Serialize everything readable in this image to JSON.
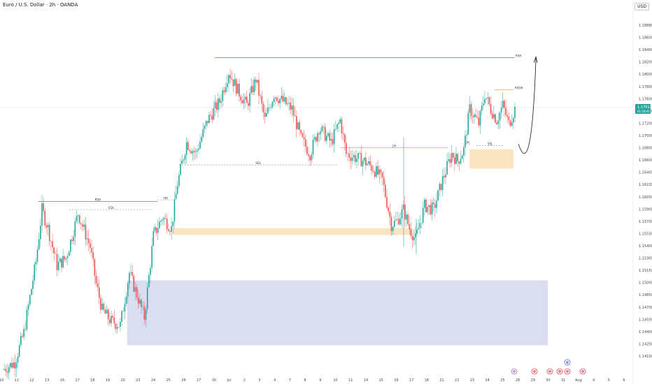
{
  "header": {
    "symbol_title": "Euro / U.S. Dollar · 2h · OANDA",
    "currency": "USD"
  },
  "colors": {
    "up": "#26a69a",
    "down": "#ef5350",
    "zone_orange": "#fbe3bf",
    "zone_blue": "#d8dcef",
    "line_blue": "#2962ff",
    "line_orange": "#f0a830"
  },
  "chart_data": {
    "type": "candlestick",
    "title": "",
    "y_ticks": [
      "1.18880",
      "1.18600",
      "1.18400",
      "1.18200",
      "1.18000",
      "1.17800",
      "1.17600",
      "1.17400",
      "1.17200",
      "1.17000",
      "1.16800",
      "1.16600",
      "1.16400",
      "1.16220",
      "1.16050",
      "1.15900",
      "1.15700",
      "1.15550",
      "1.15400",
      "1.15300",
      "1.15150",
      "1.15000",
      "1.14850",
      "1.14700",
      "1.14550",
      "1.14400",
      "1.14250",
      "1.14100"
    ],
    "ylim": [
      1.1405,
      1.1895
    ],
    "x_ticks": [
      "10",
      "11",
      "12",
      "13",
      "16",
      "17",
      "18",
      "19",
      "20",
      "23",
      "24",
      "25",
      "26",
      "27",
      "30",
      "Jul",
      "2",
      "3",
      "4",
      "7",
      "8",
      "9",
      "10",
      "11",
      "14",
      "15",
      "16",
      "17",
      "18",
      "21",
      "22",
      "23",
      "24",
      "25",
      "28",
      "29",
      "30",
      "31",
      "Aug",
      "4",
      "5",
      "6"
    ],
    "current_price": {
      "value": "1.17612",
      "sub": "01:18:41",
      "level": 1.1762
    },
    "levels": [
      {
        "label": "RSH",
        "price": 1.1829,
        "x_from": "30",
        "x_to": "28",
        "color": "blue"
      },
      {
        "label": "RSH",
        "price": 1.1636,
        "x_from": "12",
        "x_to": "24",
        "color": "blue"
      },
      {
        "label": "EQL",
        "price": 1.1625,
        "x_from": "16",
        "x_to": "23",
        "color": "gray"
      },
      {
        "label": "SSL",
        "price": 1.1685,
        "x_from": "25",
        "x_to": "11",
        "color": "gray"
      },
      {
        "label": "HH",
        "price": 1.1638,
        "x_from": "24",
        "x_to": "25",
        "color": "gray"
      },
      {
        "label": "LH",
        "price": 1.1708,
        "x_from": "10",
        "x_to": "21",
        "color": "orange"
      },
      {
        "label": "HH",
        "price": 1.1713,
        "x_from": "21",
        "x_to": "22",
        "color": "gray"
      },
      {
        "label": "SSL",
        "price": 1.1711,
        "x_from": "23",
        "x_to": "25",
        "color": "gray"
      },
      {
        "label": "RSOH",
        "price": 1.1786,
        "x_from": "24",
        "x_to": "28",
        "color": "orange"
      }
    ],
    "zones": [
      {
        "name": "demand-zone-upper",
        "price_top": 1.1706,
        "price_bottom": 1.168,
        "x_from": "22",
        "x_to": "28",
        "color": "orange"
      },
      {
        "name": "demand-zone-mid",
        "price_top": 1.16,
        "price_bottom": 1.1591,
        "x_from": "25",
        "x_to": "17",
        "color": "orange"
      },
      {
        "name": "demand-zone-lower",
        "price_top": 1.153,
        "price_bottom": 1.1443,
        "x_from": "18",
        "x_to": "31",
        "color": "blue"
      }
    ],
    "projection": {
      "description_points": [
        [
          1.1706,
          "28"
        ],
        [
          1.169,
          "28"
        ],
        [
          1.183,
          "28"
        ]
      ]
    },
    "candle_anchors": [
      {
        "t": 0,
        "p": 1.141
      },
      {
        "t": 8,
        "p": 1.142
      },
      {
        "t": 14,
        "p": 1.146
      },
      {
        "t": 22,
        "p": 1.1555
      },
      {
        "t": 26,
        "p": 1.1625
      },
      {
        "t": 30,
        "p": 1.16
      },
      {
        "t": 36,
        "p": 1.155
      },
      {
        "t": 42,
        "p": 1.156
      },
      {
        "t": 50,
        "p": 1.162
      },
      {
        "t": 58,
        "p": 1.1575
      },
      {
        "t": 62,
        "p": 1.1525
      },
      {
        "t": 66,
        "p": 1.149
      },
      {
        "t": 72,
        "p": 1.1475
      },
      {
        "t": 78,
        "p": 1.147
      },
      {
        "t": 84,
        "p": 1.154
      },
      {
        "t": 90,
        "p": 1.1505
      },
      {
        "t": 94,
        "p": 1.148
      },
      {
        "t": 100,
        "p": 1.159
      },
      {
        "t": 106,
        "p": 1.1615
      },
      {
        "t": 112,
        "p": 1.16
      },
      {
        "t": 116,
        "p": 1.166
      },
      {
        "t": 122,
        "p": 1.1715
      },
      {
        "t": 128,
        "p": 1.17
      },
      {
        "t": 136,
        "p": 1.1745
      },
      {
        "t": 144,
        "p": 1.177
      },
      {
        "t": 150,
        "p": 1.181
      },
      {
        "t": 156,
        "p": 1.1785
      },
      {
        "t": 162,
        "p": 1.1765
      },
      {
        "t": 168,
        "p": 1.18
      },
      {
        "t": 174,
        "p": 1.1745
      },
      {
        "t": 180,
        "p": 1.178
      },
      {
        "t": 186,
        "p": 1.177
      },
      {
        "t": 192,
        "p": 1.176
      },
      {
        "t": 198,
        "p": 1.172
      },
      {
        "t": 204,
        "p": 1.17
      },
      {
        "t": 210,
        "p": 1.1735
      },
      {
        "t": 218,
        "p": 1.1715
      },
      {
        "t": 224,
        "p": 1.1745
      },
      {
        "t": 228,
        "p": 1.17
      },
      {
        "t": 234,
        "p": 1.1695
      },
      {
        "t": 240,
        "p": 1.169
      },
      {
        "t": 246,
        "p": 1.168
      },
      {
        "t": 252,
        "p": 1.1665
      },
      {
        "t": 258,
        "p": 1.1605
      },
      {
        "t": 262,
        "p": 1.161
      },
      {
        "t": 266,
        "p": 1.1625
      },
      {
        "t": 270,
        "p": 1.16
      },
      {
        "t": 274,
        "p": 1.1585
      },
      {
        "t": 280,
        "p": 1.163
      },
      {
        "t": 286,
        "p": 1.1625
      },
      {
        "t": 292,
        "p": 1.1665
      },
      {
        "t": 298,
        "p": 1.17
      },
      {
        "t": 302,
        "p": 1.169
      },
      {
        "t": 306,
        "p": 1.1705
      },
      {
        "t": 310,
        "p": 1.176
      },
      {
        "t": 316,
        "p": 1.174
      },
      {
        "t": 320,
        "p": 1.178
      },
      {
        "t": 324,
        "p": 1.176
      },
      {
        "t": 328,
        "p": 1.1745
      },
      {
        "t": 332,
        "p": 1.1765
      },
      {
        "t": 336,
        "p": 1.174
      },
      {
        "t": 340,
        "p": 1.176
      }
    ]
  }
}
